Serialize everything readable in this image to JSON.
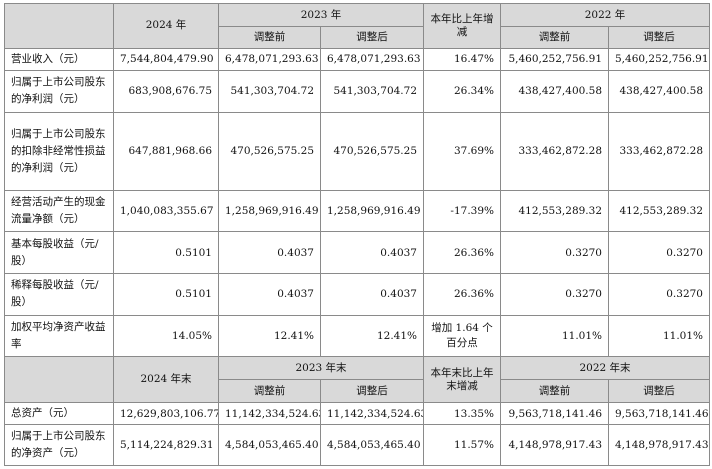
{
  "headers_top": {
    "y2024": "2024 年",
    "y2023": "2023 年",
    "yoy": "本年比上年增减",
    "y2022": "2022 年",
    "before": "调整前",
    "after": "调整后"
  },
  "rows_top": [
    {
      "label": "营业收入（元）",
      "v2024": "7,544,804,479.90",
      "v2023b": "6,478,071,293.63",
      "v2023a": "6,478,071,293.63",
      "yoy": "16.47%",
      "v2022b": "5,460,252,756.91",
      "v2022a": "5,460,252,756.91"
    },
    {
      "label": "归属于上市公司股东的净利润（元）",
      "v2024": "683,908,676.75",
      "v2023b": "541,303,704.72",
      "v2023a": "541,303,704.72",
      "yoy": "26.34%",
      "v2022b": "438,427,400.58",
      "v2022a": "438,427,400.58"
    },
    {
      "label": "归属于上市公司股东的扣除非经常性损益的净利润（元）",
      "v2024": "647,881,968.66",
      "v2023b": "470,526,575.25",
      "v2023a": "470,526,575.25",
      "yoy": "37.69%",
      "v2022b": "333,462,872.28",
      "v2022a": "333,462,872.28"
    },
    {
      "label": "经营活动产生的现金流量净额（元）",
      "v2024": "1,040,083,355.67",
      "v2023b": "1,258,969,916.49",
      "v2023a": "1,258,969,916.49",
      "yoy": "-17.39%",
      "v2022b": "412,553,289.32",
      "v2022a": "412,553,289.32"
    },
    {
      "label": "基本每股收益（元/股）",
      "v2024": "0.5101",
      "v2023b": "0.4037",
      "v2023a": "0.4037",
      "yoy": "26.36%",
      "v2022b": "0.3270",
      "v2022a": "0.3270"
    },
    {
      "label": "稀释每股收益（元/股）",
      "v2024": "0.5101",
      "v2023b": "0.4037",
      "v2023a": "0.4037",
      "yoy": "26.36%",
      "v2022b": "0.3270",
      "v2022a": "0.3270"
    },
    {
      "label": "加权平均净资产收益率",
      "v2024": "14.05%",
      "v2023b": "12.41%",
      "v2023a": "12.41%",
      "yoy": "增加 1.64 个百分点",
      "v2022b": "11.01%",
      "v2022a": "11.01%"
    }
  ],
  "headers_bottom": {
    "y2024": "2024 年末",
    "y2023": "2023 年末",
    "yoy": "本年末比上年末增减",
    "y2022": "2022 年末",
    "before": "调整前",
    "after": "调整后"
  },
  "rows_bottom": [
    {
      "label": "总资产（元）",
      "v2024": "12,629,803,106.77",
      "v2023b": "11,142,334,524.63",
      "v2023a": "11,142,334,524.63",
      "yoy": "13.35%",
      "v2022b": "9,563,718,141.46",
      "v2022a": "9,563,718,141.46"
    },
    {
      "label": "归属于上市公司股东的净资产（元）",
      "v2024": "5,114,224,829.31",
      "v2023b": "4,584,053,465.40",
      "v2023a": "4,584,053,465.40",
      "yoy": "11.57%",
      "v2022b": "4,148,978,917.43",
      "v2022a": "4,148,978,917.43"
    }
  ]
}
